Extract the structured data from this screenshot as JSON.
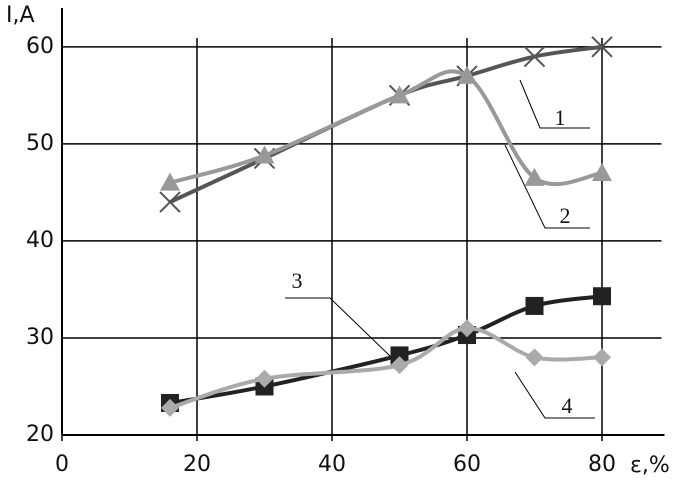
{
  "chart_data": {
    "type": "line",
    "x_label": "ε,%",
    "y_label": "I,A",
    "x": [
      16,
      30,
      50,
      60,
      70,
      80
    ],
    "series": [
      {
        "name": "1",
        "color": "#555555",
        "marker": "cross",
        "values": [
          44,
          48.5,
          55,
          57,
          59,
          60
        ]
      },
      {
        "name": "2",
        "color": "#999999",
        "marker": "triangle",
        "values": [
          46,
          48.8,
          55,
          57,
          46.5,
          47
        ]
      },
      {
        "name": "3",
        "color": "#222222",
        "marker": "square",
        "values": [
          23.3,
          25,
          28.2,
          30.3,
          33.3,
          34.3
        ]
      },
      {
        "name": "4",
        "color": "#aaaaaa",
        "marker": "diamond",
        "values": [
          22.8,
          25.8,
          27.2,
          31,
          28,
          28
        ]
      }
    ],
    "xlim": [
      0,
      90
    ],
    "ylim": [
      20,
      64
    ],
    "xticks": [
      0,
      20,
      40,
      60,
      80
    ],
    "yticks": [
      20,
      30,
      40,
      50,
      60
    ],
    "grid": true
  }
}
